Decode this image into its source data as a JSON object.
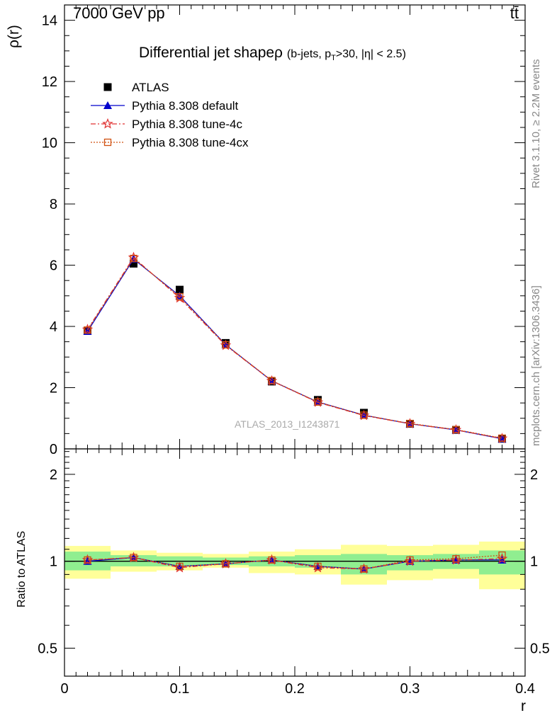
{
  "header": {
    "energy_label": "7000 GeV pp",
    "process_label": "tt̄"
  },
  "title": {
    "main": "Differential jet shapeρ",
    "sub": "(b-jets, p_T>30, |η| < 2.5)"
  },
  "analysis_label": "ATLAS_2013_I1243871",
  "side_labels": {
    "rivet": "Rivet 3.1.10, ≥ 2.2M events",
    "mcplots": "mcplots.cern.ch [arXiv:1306.3436]"
  },
  "chart_data": [
    {
      "type": "scatter",
      "panel": "main",
      "ylabel": "ρ(r)",
      "xlim": [
        0,
        0.4
      ],
      "ylim": [
        0,
        14.5
      ],
      "yticks": [
        0,
        2,
        4,
        6,
        8,
        10,
        12,
        14
      ],
      "x": [
        0.02,
        0.06,
        0.1,
        0.14,
        0.18,
        0.22,
        0.26,
        0.3,
        0.34,
        0.38
      ],
      "series": [
        {
          "name": "ATLAS",
          "color": "#000000",
          "marker": "square",
          "values": [
            3.86,
            6.05,
            5.2,
            3.46,
            2.2,
            1.6,
            1.18,
            0.82,
            0.62,
            0.33
          ]
        },
        {
          "name": "Pythia 8.308 default",
          "color": "#0000cc",
          "marker": "triangle",
          "line": "solid",
          "values": [
            3.84,
            6.2,
            5.0,
            3.4,
            2.22,
            1.53,
            1.1,
            0.82,
            0.62,
            0.33
          ]
        },
        {
          "name": "Pythia 8.308 tune-4c",
          "color": "#e03030",
          "marker": "star",
          "line": "dashdot",
          "values": [
            3.9,
            6.25,
            4.93,
            3.38,
            2.22,
            1.52,
            1.09,
            0.82,
            0.62,
            0.34
          ]
        },
        {
          "name": "Pythia 8.308 tune-4cx",
          "color": "#d05010",
          "marker": "open-square",
          "line": "dotted",
          "values": [
            3.88,
            6.22,
            4.97,
            3.4,
            2.23,
            1.53,
            1.1,
            0.83,
            0.63,
            0.35
          ]
        }
      ]
    },
    {
      "type": "scatter",
      "panel": "ratio",
      "ylabel": "Ratio to ATLAS",
      "xlabel": "r",
      "xlim": [
        0,
        0.4
      ],
      "ylim": [
        0.4,
        2.45
      ],
      "yticks": [
        0.5,
        1,
        2
      ],
      "xticks": [
        0,
        0.1,
        0.2,
        0.3,
        0.4
      ],
      "x": [
        0.02,
        0.06,
        0.1,
        0.14,
        0.18,
        0.22,
        0.26,
        0.3,
        0.34,
        0.38
      ],
      "bin_edges": [
        0,
        0.04,
        0.08,
        0.12,
        0.16,
        0.2,
        0.24,
        0.28,
        0.32,
        0.36,
        0.4
      ],
      "band_inner": [
        [
          0.93,
          1.08
        ],
        [
          0.96,
          1.05
        ],
        [
          0.96,
          1.04
        ],
        [
          0.97,
          1.03
        ],
        [
          0.96,
          1.04
        ],
        [
          0.95,
          1.05
        ],
        [
          0.9,
          1.06
        ],
        [
          0.93,
          1.05
        ],
        [
          0.94,
          1.06
        ],
        [
          0.9,
          1.09
        ]
      ],
      "band_outer": [
        [
          0.87,
          1.13
        ],
        [
          0.92,
          1.09
        ],
        [
          0.93,
          1.07
        ],
        [
          0.95,
          1.06
        ],
        [
          0.91,
          1.08
        ],
        [
          0.9,
          1.1
        ],
        [
          0.83,
          1.14
        ],
        [
          0.86,
          1.13
        ],
        [
          0.87,
          1.14
        ],
        [
          0.8,
          1.17
        ]
      ],
      "band_colors": {
        "inner": "#90ee90",
        "outer": "#ffff99"
      },
      "series": [
        {
          "name": "Pythia 8.308 default",
          "color": "#0000cc",
          "marker": "triangle",
          "line": "solid",
          "values": [
            1.0,
            1.03,
            0.96,
            0.98,
            1.01,
            0.96,
            0.94,
            1.0,
            1.01,
            1.01
          ]
        },
        {
          "name": "Pythia 8.308 tune-4c",
          "color": "#e03030",
          "marker": "star",
          "line": "dashdot",
          "values": [
            1.01,
            1.03,
            0.95,
            0.98,
            1.01,
            0.95,
            0.94,
            1.0,
            1.01,
            1.02
          ]
        },
        {
          "name": "Pythia 8.308 tune-4cx",
          "color": "#d05010",
          "marker": "open-square",
          "line": "dotted",
          "values": [
            1.01,
            1.03,
            0.96,
            0.98,
            1.01,
            0.96,
            0.94,
            1.01,
            1.02,
            1.05
          ]
        }
      ]
    }
  ]
}
